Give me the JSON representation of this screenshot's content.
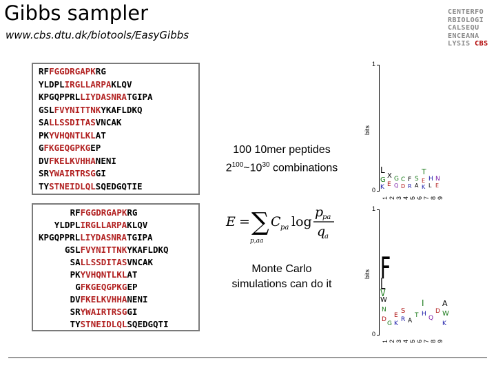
{
  "header": {
    "title": "Gibbs sampler",
    "url": "www.cbs.dtu.dk/biotools/EasyGibbs"
  },
  "logo": {
    "lines": [
      "CENTERFO",
      "RBIOLOGI",
      "CALSEQU",
      "ENCEANA",
      "LYSIS"
    ],
    "suffix": "CBS"
  },
  "top_box": {
    "rows": [
      {
        "pre": "RF",
        "hl": "FGGDRGAPK",
        "post": "RG"
      },
      {
        "pre": "YLDPL",
        "hl": "IRGLLARPA",
        "post": "KLQV"
      },
      {
        "pre": "KPGQPPRL",
        "hl": "LIYDASNRA",
        "post": "TGIPA"
      },
      {
        "pre": "GSL",
        "hl": "FVYNITTNK",
        "post": "YKAFLDKQ"
      },
      {
        "pre": "SA",
        "hl": "LLSSDITAS",
        "post": "VNCAK"
      },
      {
        "pre": "PK",
        "hl": "YVHQNTLKL",
        "post": "AT"
      },
      {
        "pre": "G",
        "hl": "FKGEQGPKG",
        "post": "EP"
      },
      {
        "pre": "DV",
        "hl": "FKELKVHHA",
        "post": "NENI"
      },
      {
        "pre": "SR",
        "hl": "YWAIRTRSG",
        "post": "GI"
      },
      {
        "pre": "TY",
        "hl": "STNEIDLQL",
        "post": "SQEDGQTIE"
      }
    ]
  },
  "bottom_box": {
    "rows": [
      {
        "pre": "RF",
        "hl": "FGGDRGAPK",
        "post": "RG",
        "indent": 4
      },
      {
        "pre": "YLDPL",
        "hl": "IRGLLARPA",
        "post": "KLQV",
        "indent": 1
      },
      {
        "pre": "KPGQPPRL",
        "hl": "LIYDASNRA",
        "post": "TGIPA",
        "indent": -2
      },
      {
        "pre": "GSL",
        "hl": "FVYNITTNK",
        "post": "YKAFLDKQ",
        "indent": 3
      },
      {
        "pre": "SA",
        "hl": "LLSSDITAS",
        "post": "VNCAK",
        "indent": 4
      },
      {
        "pre": "PK",
        "hl": "YVHQNTLKL",
        "post": "AT",
        "indent": 4
      },
      {
        "pre": "G",
        "hl": "FKGEQGPKG",
        "post": "EP",
        "indent": 5
      },
      {
        "pre": "DV",
        "hl": "FKELKVHHA",
        "post": "NENI",
        "indent": 4
      },
      {
        "pre": "SR",
        "hl": "YWAIRTRSG",
        "post": "GI",
        "indent": 4
      },
      {
        "pre": "TY",
        "hl": "STNEIDLQL",
        "post": "SQEDGQTI",
        "indent": 4
      }
    ]
  },
  "middle": {
    "peptides_line": "100 10mer peptides",
    "comb_base1": "2",
    "comb_exp1": "100",
    "comb_sep": "~10",
    "comb_exp2": "30",
    "comb_tail": " combinations",
    "mc_line1": "Monte Carlo",
    "mc_line2": "simulations can do it"
  },
  "formula": {
    "lhs": "E",
    "eq": "=",
    "sum_sub": "p,aa",
    "coef": "C",
    "coef_sub": "pa",
    "log": "log",
    "num": "p",
    "num_sub": "pa",
    "den": "q",
    "den_sub": "a"
  },
  "seq_logos": {
    "ylabel": "bits",
    "ymax_label": "1",
    "ymin_label": "0",
    "positions": [
      "1",
      "2",
      "3",
      "4",
      "5",
      "6",
      "7",
      "8",
      "9"
    ]
  },
  "colors": {
    "highlight": "#b22222",
    "box_border": "#7a7a7a",
    "logo_gray": "#8a8a8a",
    "logo_red": "#b00000"
  }
}
